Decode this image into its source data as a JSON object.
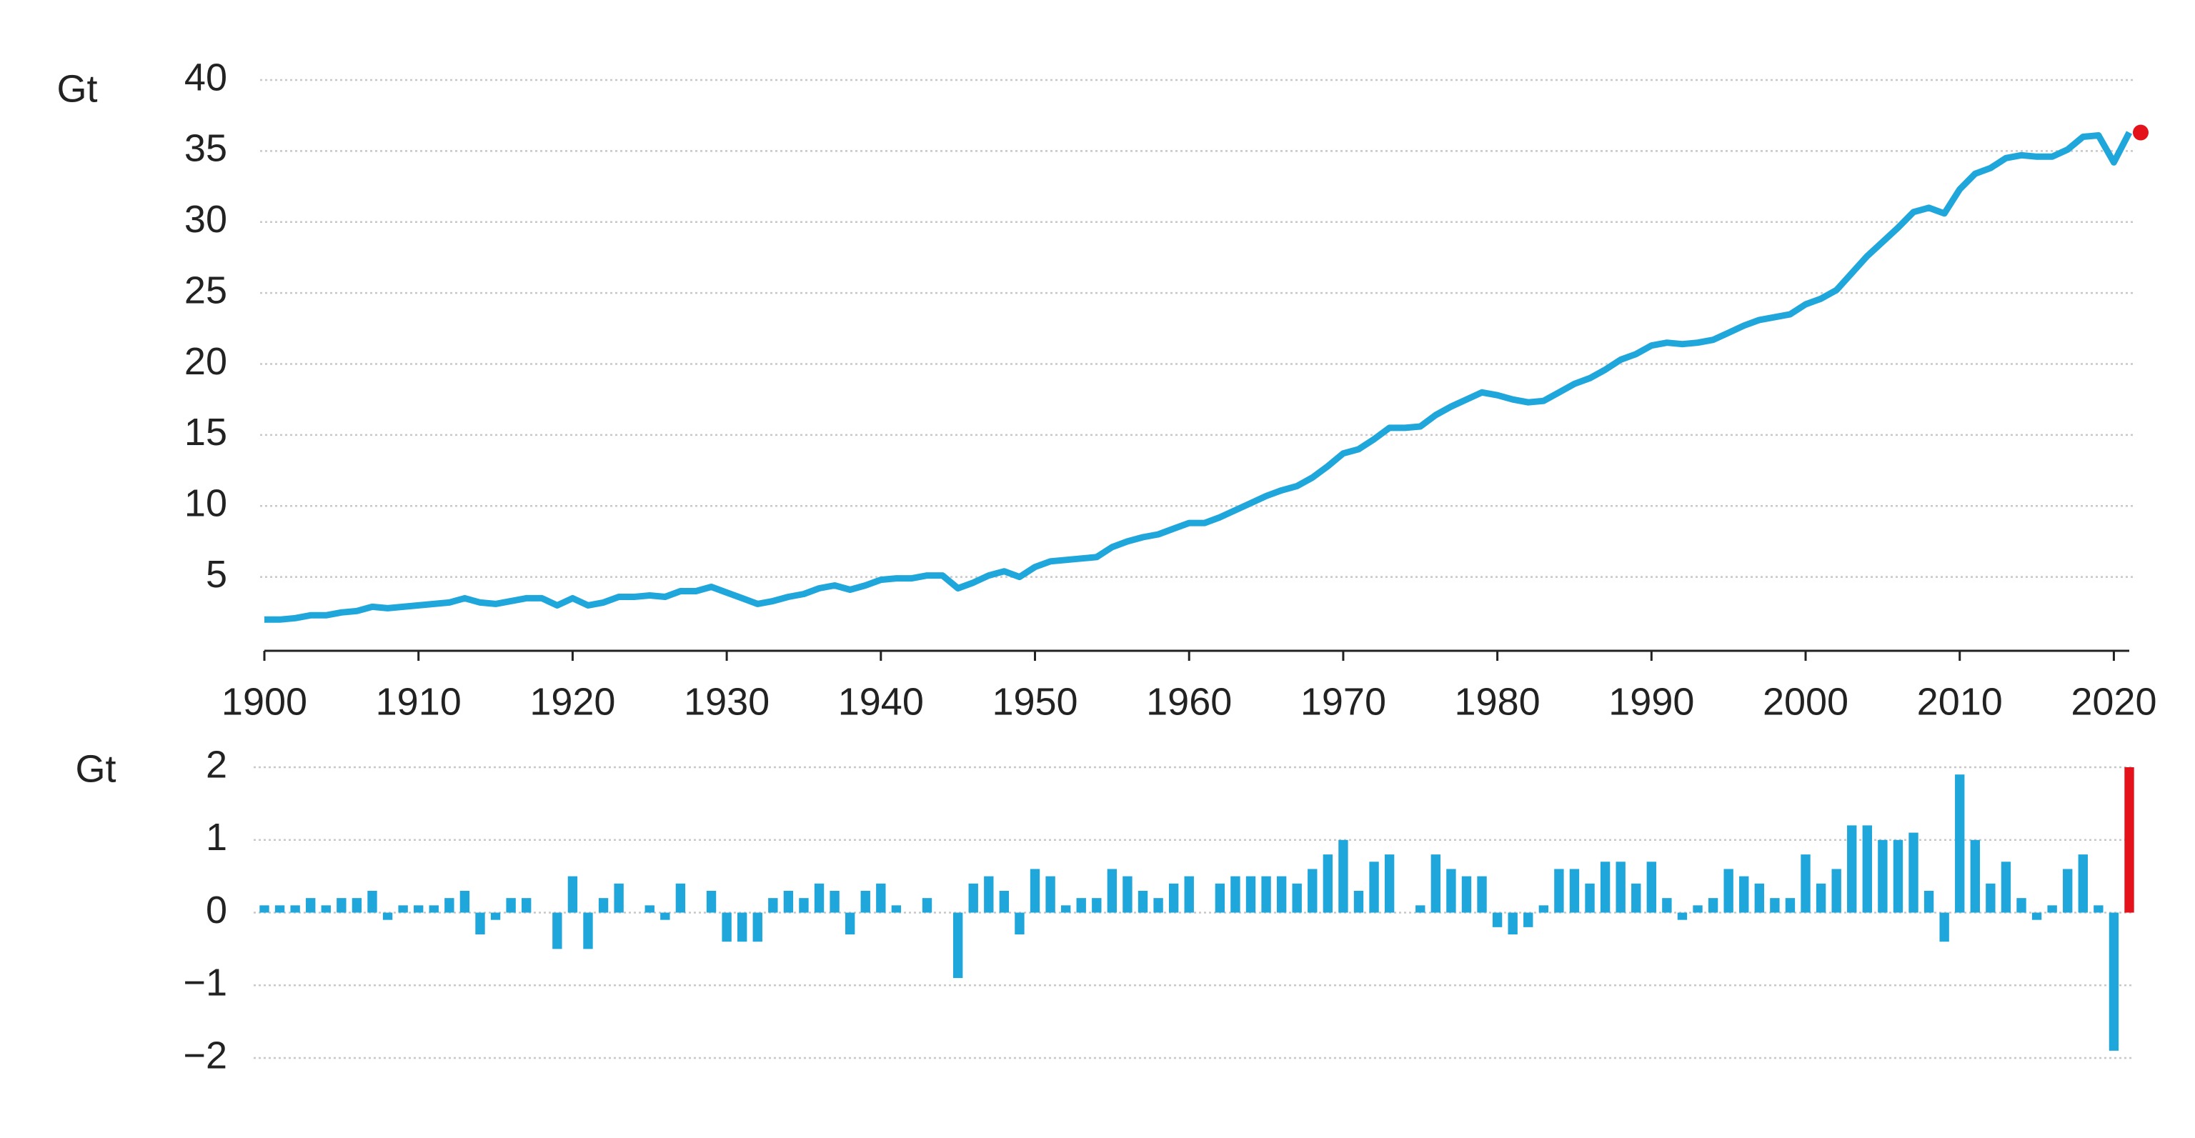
{
  "chart_data": [
    {
      "type": "line",
      "y_label": "Gt",
      "color": "#1fa7dc",
      "highlight_color": "#e3121b",
      "grid": true,
      "xlim": [
        1900,
        2021
      ],
      "xticks": [
        1900,
        1910,
        1920,
        1930,
        1940,
        1950,
        1960,
        1970,
        1980,
        1990,
        2000,
        2010,
        2020
      ],
      "ylim": [
        0,
        40
      ],
      "yticks": [
        5,
        10,
        15,
        20,
        25,
        30,
        35,
        40
      ],
      "x": [
        1900,
        1901,
        1902,
        1903,
        1904,
        1905,
        1906,
        1907,
        1908,
        1909,
        1910,
        1911,
        1912,
        1913,
        1914,
        1915,
        1916,
        1917,
        1918,
        1919,
        1920,
        1921,
        1922,
        1923,
        1924,
        1925,
        1926,
        1927,
        1928,
        1929,
        1930,
        1931,
        1932,
        1933,
        1934,
        1935,
        1936,
        1937,
        1938,
        1939,
        1940,
        1941,
        1942,
        1943,
        1944,
        1945,
        1946,
        1947,
        1948,
        1949,
        1950,
        1951,
        1952,
        1953,
        1954,
        1955,
        1956,
        1957,
        1958,
        1959,
        1960,
        1961,
        1962,
        1963,
        1964,
        1965,
        1966,
        1967,
        1968,
        1969,
        1970,
        1971,
        1972,
        1973,
        1974,
        1975,
        1976,
        1977,
        1978,
        1979,
        1980,
        1981,
        1982,
        1983,
        1984,
        1985,
        1986,
        1987,
        1988,
        1989,
        1990,
        1991,
        1992,
        1993,
        1994,
        1995,
        1996,
        1997,
        1998,
        1999,
        2000,
        2001,
        2002,
        2003,
        2004,
        2005,
        2006,
        2007,
        2008,
        2009,
        2010,
        2011,
        2012,
        2013,
        2014,
        2015,
        2016,
        2017,
        2018,
        2019,
        2020,
        2021
      ],
      "values": [
        2.0,
        2.0,
        2.1,
        2.3,
        2.3,
        2.5,
        2.6,
        2.9,
        2.8,
        2.9,
        3.0,
        3.1,
        3.2,
        3.5,
        3.2,
        3.1,
        3.3,
        3.5,
        3.5,
        3.0,
        3.5,
        3.0,
        3.2,
        3.6,
        3.6,
        3.7,
        3.6,
        4.0,
        4.0,
        4.3,
        3.9,
        3.5,
        3.1,
        3.3,
        3.6,
        3.8,
        4.2,
        4.4,
        4.1,
        4.4,
        4.8,
        4.9,
        4.9,
        5.1,
        5.1,
        4.2,
        4.6,
        5.1,
        5.4,
        5.0,
        5.7,
        6.1,
        6.2,
        6.3,
        6.4,
        7.1,
        7.5,
        7.8,
        8.0,
        8.4,
        8.8,
        8.8,
        9.2,
        9.7,
        10.2,
        10.7,
        11.1,
        11.4,
        12.0,
        12.8,
        13.7,
        14.0,
        14.7,
        15.5,
        15.5,
        15.6,
        16.4,
        17.0,
        17.5,
        18.0,
        17.8,
        17.5,
        17.3,
        17.4,
        18.0,
        18.6,
        19.0,
        19.6,
        20.3,
        20.7,
        21.3,
        21.5,
        21.4,
        21.5,
        21.7,
        22.2,
        22.7,
        23.1,
        23.3,
        23.5,
        24.2,
        24.6,
        25.2,
        26.4,
        27.6,
        28.6,
        29.6,
        30.7,
        31.0,
        30.6,
        32.3,
        33.4,
        33.8,
        34.5,
        34.7,
        34.6,
        34.6,
        35.1,
        36.0,
        36.1,
        34.2,
        36.3
      ]
    },
    {
      "type": "bar",
      "y_label": "Gt",
      "color": "#1fa7dc",
      "highlight_color": "#e3121b",
      "grid": true,
      "xlim": [
        1900,
        2021
      ],
      "ylim": [
        -2,
        2
      ],
      "yticks": [
        2,
        1,
        0,
        {
          "value": -1,
          "label": "−1"
        },
        {
          "value": -2,
          "label": "−2"
        }
      ],
      "x": [
        1900,
        1901,
        1902,
        1903,
        1904,
        1905,
        1906,
        1907,
        1908,
        1909,
        1910,
        1911,
        1912,
        1913,
        1914,
        1915,
        1916,
        1917,
        1918,
        1919,
        1920,
        1921,
        1922,
        1923,
        1924,
        1925,
        1926,
        1927,
        1928,
        1929,
        1930,
        1931,
        1932,
        1933,
        1934,
        1935,
        1936,
        1937,
        1938,
        1939,
        1940,
        1941,
        1942,
        1943,
        1944,
        1945,
        1946,
        1947,
        1948,
        1949,
        1950,
        1951,
        1952,
        1953,
        1954,
        1955,
        1956,
        1957,
        1958,
        1959,
        1960,
        1961,
        1962,
        1963,
        1964,
        1965,
        1966,
        1967,
        1968,
        1969,
        1970,
        1971,
        1972,
        1973,
        1974,
        1975,
        1976,
        1977,
        1978,
        1979,
        1980,
        1981,
        1982,
        1983,
        1984,
        1985,
        1986,
        1987,
        1988,
        1989,
        1990,
        1991,
        1992,
        1993,
        1994,
        1995,
        1996,
        1997,
        1998,
        1999,
        2000,
        2001,
        2002,
        2003,
        2004,
        2005,
        2006,
        2007,
        2008,
        2009,
        2010,
        2011,
        2012,
        2013,
        2014,
        2015,
        2016,
        2017,
        2018,
        2019,
        2020,
        2021
      ],
      "values": [
        0.1,
        0.1,
        0.1,
        0.2,
        0.1,
        0.2,
        0.2,
        0.3,
        -0.1,
        0.1,
        0.1,
        0.1,
        0.2,
        0.3,
        -0.3,
        -0.1,
        0.2,
        0.2,
        0.0,
        -0.5,
        0.5,
        -0.5,
        0.2,
        0.4,
        0.0,
        0.1,
        -0.1,
        0.4,
        0.0,
        0.3,
        -0.4,
        -0.4,
        -0.4,
        0.2,
        0.3,
        0.2,
        0.4,
        0.3,
        -0.3,
        0.3,
        0.4,
        0.1,
        0.0,
        0.2,
        0.0,
        -0.9,
        0.4,
        0.5,
        0.3,
        -0.3,
        0.6,
        0.5,
        0.1,
        0.2,
        0.2,
        0.6,
        0.5,
        0.3,
        0.2,
        0.4,
        0.5,
        0.0,
        0.4,
        0.5,
        0.5,
        0.5,
        0.5,
        0.4,
        0.6,
        0.8,
        1.0,
        0.3,
        0.7,
        0.8,
        0.0,
        0.1,
        0.8,
        0.6,
        0.5,
        0.5,
        -0.2,
        -0.3,
        -0.2,
        0.1,
        0.6,
        0.6,
        0.4,
        0.7,
        0.7,
        0.4,
        0.7,
        0.2,
        -0.1,
        0.1,
        0.2,
        0.6,
        0.5,
        0.4,
        0.2,
        0.2,
        0.8,
        0.4,
        0.6,
        1.2,
        1.2,
        1.0,
        1.0,
        1.1,
        0.3,
        -0.4,
        1.9,
        1.0,
        0.4,
        0.7,
        0.2,
        -0.1,
        0.1,
        0.6,
        0.8,
        0.1,
        -1.9,
        2.0
      ]
    }
  ]
}
